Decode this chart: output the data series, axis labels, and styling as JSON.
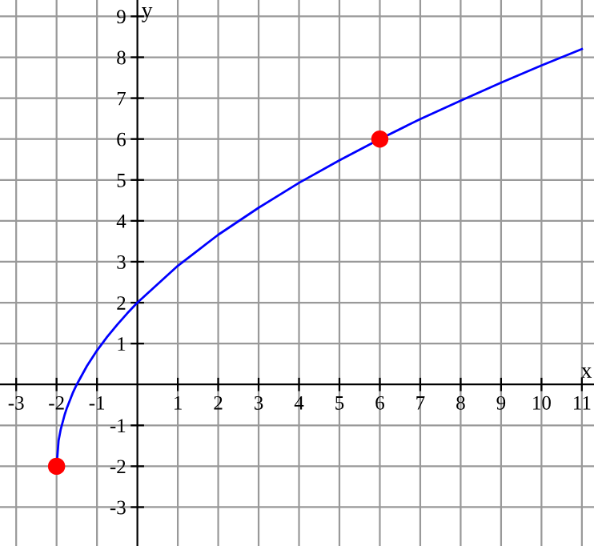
{
  "chart_data": {
    "type": "line",
    "xlabel": "x",
    "ylabel": "y",
    "xlim": [
      -3.4,
      11.3
    ],
    "ylim": [
      -3.95,
      9.4
    ],
    "xticks": [
      -3,
      -2,
      -1,
      1,
      2,
      3,
      4,
      5,
      6,
      7,
      8,
      9,
      10,
      11
    ],
    "yticks": [
      -3,
      -2,
      -1,
      1,
      2,
      3,
      4,
      5,
      6,
      7,
      8,
      9
    ],
    "grid": true,
    "series": [
      {
        "color": "#0000ff",
        "marker": "none",
        "x": [
          -2,
          -1.95,
          -1.9,
          -1.8,
          -1.75,
          -1.6,
          -1.5,
          -1.25,
          -1,
          -0.75,
          -0.5,
          -0.25,
          0,
          1,
          2,
          3,
          4,
          5,
          6,
          7,
          8,
          9,
          10,
          11
        ],
        "values": [
          -2,
          -1.37,
          -1.11,
          -0.74,
          -0.59,
          -0.21,
          0,
          0.45,
          0.83,
          1.16,
          1.46,
          1.74,
          2,
          2.9,
          3.66,
          4.32,
          4.93,
          5.48,
          6,
          6.49,
          6.94,
          7.38,
          7.8,
          8.2
        ]
      },
      {
        "type": "scatter",
        "color": "#ff0000",
        "marker": "circle",
        "x": [
          -2,
          6
        ],
        "values": [
          -2,
          6
        ]
      }
    ]
  }
}
